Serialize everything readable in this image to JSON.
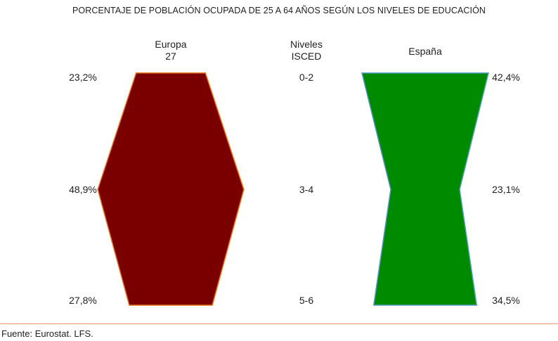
{
  "title": "PORCENTAJE DE POBLACIÓN OCUPADA DE 25 A 64 AÑOS SEGÚN LOS NIVELES DE EDUCACIÓN",
  "source": "Fuente: Eurostat. LFS.",
  "chart_data": {
    "type": "area",
    "levels_header": [
      "Niveles",
      "ISCED"
    ],
    "levels": [
      "0-2",
      "3-4",
      "5-6"
    ],
    "series": [
      {
        "name": "Europa 27",
        "name_lines": [
          "Europa",
          "27"
        ],
        "values": [
          23.2,
          48.9,
          27.8
        ],
        "labels": [
          "23,2%",
          "48,9%",
          "27,8%"
        ],
        "fill": "#7a0000",
        "stroke": "#e8761c"
      },
      {
        "name": "España",
        "name_lines": [
          "España"
        ],
        "values": [
          42.4,
          23.1,
          34.5
        ],
        "labels": [
          "42,4%",
          "23,1%",
          "34,5%"
        ],
        "fill": "#008a00",
        "stroke": "#5aa0c8"
      }
    ]
  }
}
